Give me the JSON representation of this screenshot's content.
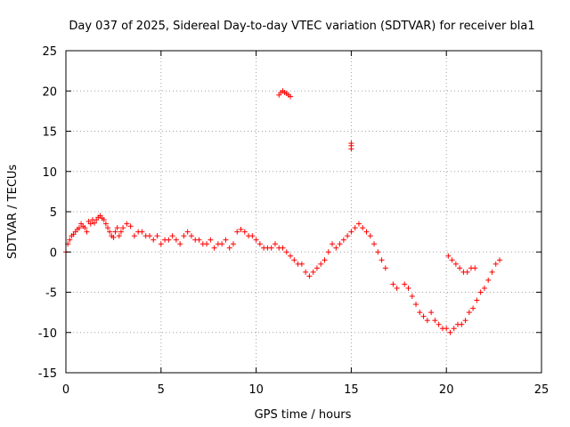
{
  "chart_data": {
    "type": "scatter",
    "title": "Day 037 of 2025, Sidereal Day-to-day VTEC variation (SDTVAR) for receiver bla1",
    "xlabel": "GPS time / hours",
    "ylabel": "SDTVAR / TECUs",
    "xlim": [
      0,
      25
    ],
    "ylim": [
      -15,
      25
    ],
    "xticks": [
      0,
      5,
      10,
      15,
      20,
      25
    ],
    "yticks": [
      -15,
      -10,
      -5,
      0,
      5,
      10,
      15,
      20,
      25
    ],
    "grid": true,
    "marker": "plus",
    "color": "#ff0000",
    "series": [
      {
        "name": "SDTVAR",
        "x": [
          0.0,
          0.1,
          0.2,
          0.3,
          0.4,
          0.5,
          0.6,
          0.7,
          0.8,
          0.9,
          1.0,
          1.1,
          1.2,
          1.3,
          1.4,
          1.5,
          1.6,
          1.7,
          1.8,
          1.9,
          2.0,
          2.1,
          2.2,
          2.3,
          2.4,
          2.5,
          2.6,
          2.7,
          2.8,
          2.9,
          3.0,
          3.2,
          3.4,
          3.6,
          3.8,
          4.0,
          4.2,
          4.4,
          4.6,
          4.8,
          5.0,
          5.2,
          5.4,
          5.6,
          5.8,
          6.0,
          6.2,
          6.4,
          6.6,
          6.8,
          7.0,
          7.2,
          7.4,
          7.6,
          7.8,
          8.0,
          8.2,
          8.4,
          8.6,
          8.8,
          9.0,
          9.2,
          9.4,
          9.6,
          9.8,
          10.0,
          10.2,
          10.4,
          10.6,
          10.8,
          11.0,
          11.2,
          11.4,
          11.6,
          11.8,
          12.0,
          12.2,
          12.4,
          12.6,
          12.8,
          13.0,
          13.2,
          13.4,
          13.6,
          13.8,
          14.0,
          14.2,
          14.4,
          14.6,
          14.8,
          15.0,
          15.2,
          15.4,
          15.6,
          15.8,
          16.0,
          16.2,
          16.4,
          16.6,
          16.8,
          17.2,
          17.4,
          17.8,
          18.0,
          18.2,
          18.4,
          18.6,
          18.8,
          19.0,
          19.2,
          19.4,
          19.6,
          19.8,
          20.0,
          20.2,
          20.4,
          20.6,
          20.8,
          21.0,
          21.2,
          21.4,
          21.6,
          21.8,
          22.0,
          22.2,
          22.4,
          22.6,
          22.8,
          20.1,
          20.3,
          20.5,
          20.7,
          20.9,
          21.1,
          21.3,
          21.5,
          11.2,
          11.3,
          11.4,
          11.5,
          11.6,
          11.7,
          11.8,
          15.0,
          15.0,
          15.0
        ],
        "y": [
          0.0,
          1.0,
          1.5,
          2.0,
          2.2,
          2.5,
          2.8,
          3.0,
          3.5,
          3.2,
          3.0,
          2.5,
          3.8,
          3.5,
          4.0,
          3.6,
          4.0,
          4.3,
          4.5,
          4.2,
          4.0,
          3.5,
          3.0,
          2.5,
          2.0,
          1.8,
          2.5,
          3.0,
          2.0,
          2.5,
          3.0,
          3.5,
          3.2,
          2.0,
          2.5,
          2.5,
          2.0,
          2.0,
          1.5,
          2.0,
          1.0,
          1.5,
          1.5,
          2.0,
          1.5,
          1.0,
          2.0,
          2.5,
          2.0,
          1.5,
          1.5,
          1.0,
          1.0,
          1.5,
          0.5,
          1.0,
          1.0,
          1.5,
          0.5,
          1.0,
          2.5,
          2.8,
          2.5,
          2.0,
          2.0,
          1.5,
          1.0,
          0.5,
          0.5,
          0.5,
          1.0,
          0.5,
          0.5,
          0.0,
          -0.5,
          -1.0,
          -1.5,
          -1.5,
          -2.5,
          -3.0,
          -2.5,
          -2.0,
          -1.5,
          -1.0,
          0.0,
          1.0,
          0.5,
          1.0,
          1.5,
          2.0,
          2.5,
          3.0,
          3.5,
          3.0,
          2.5,
          2.0,
          1.0,
          0.0,
          -1.0,
          -2.0,
          -4.0,
          -4.5,
          -4.0,
          -4.5,
          -5.5,
          -6.5,
          -7.5,
          -8.0,
          -8.5,
          -7.5,
          -8.5,
          -9.0,
          -9.5,
          -9.5,
          -10.0,
          -9.5,
          -9.0,
          -9.0,
          -8.5,
          -7.5,
          -7.0,
          -6.0,
          -5.0,
          -4.5,
          -3.5,
          -2.5,
          -1.5,
          -1.0,
          -0.5,
          -1.0,
          -1.5,
          -2.0,
          -2.5,
          -2.5,
          -2.0,
          -2.0,
          19.5,
          19.8,
          20.0,
          19.8,
          19.7,
          19.5,
          19.3,
          12.8,
          13.2,
          13.5
        ]
      }
    ]
  }
}
